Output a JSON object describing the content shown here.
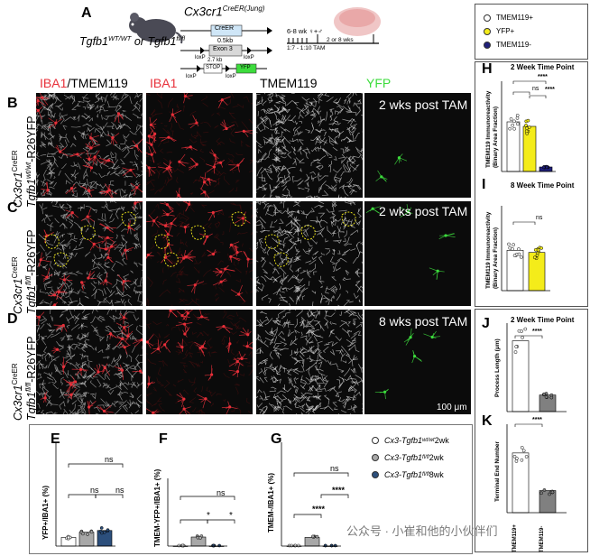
{
  "panels": {
    "A": {
      "letter": "A",
      "gene": "Cx3cr1",
      "gene_sup": "CreER(Jung)",
      "tgfb_wt": "Tgfb1",
      "tgfb_wt_sup": "WT/WT",
      "or": " or ",
      "tgfb_fl": "Tgfb1",
      "tgfb_fl_sup": "fl/fl",
      "creer": "CreER",
      "size_05": "0.5kb",
      "exon3": "Exon 3",
      "loxp1": "loxP",
      "loxp2": "loxP",
      "loxp3": "loxP",
      "loxp4": "loxP",
      "stop_size": "2.7 kb",
      "stop": "STOP",
      "yfp": "YFP",
      "age": "6-8 wk",
      "sex": "♀+♂",
      "tam": "1:7 - 1:10 TAM",
      "weeks": "2 or 8 wks"
    },
    "channels": {
      "merge": "IBA1/TMEM119",
      "merge_a": "IBA1",
      "merge_b": "/TMEM119",
      "iba1": "IBA1",
      "tmem": "TMEM119",
      "yfp": "YFP"
    },
    "B": {
      "letter": "B",
      "time": "2 wks post TAM",
      "row_line1": "Cx3cr1",
      "row_line1_sup": "CreER",
      "row_line2": "Tgfb1",
      "row_line2_sup": "wt/wt",
      "row_line2_suffix": "-R26YFP"
    },
    "C": {
      "letter": "C",
      "time": "2 wks post TAM",
      "row_line1": "Cx3cr1",
      "row_line1_sup": "CreER",
      "row_line2": "Tgfb1",
      "row_line2_sup": "fl/fl",
      "row_line2_suffix": "-R26YFP"
    },
    "D": {
      "letter": "D",
      "time": "8 wks post TAM",
      "row_line1": "Cx3cr1",
      "row_line1_sup": "CreER",
      "row_line2": "Tgfb1",
      "row_line2_sup": "fl/fl",
      "row_line2_suffix": "-R26YFP",
      "scale": "100 μm"
    },
    "E": {
      "letter": "E",
      "ylabel": "YFP+/IBA1+ (%)",
      "sig_top": "ns",
      "sig_a": "ns",
      "sig_b": "ns"
    },
    "F": {
      "letter": "F",
      "ylabel": "TMEM-YFP+/IBA1+ (%)",
      "sig_top": "ns",
      "sig_a": "*",
      "sig_b": "*"
    },
    "G": {
      "letter": "G",
      "ylabel": "TMEM-/IBA1+ (%)",
      "sig_top": "ns",
      "sig_a": "****",
      "sig_b": "****"
    },
    "legend_bottom": [
      {
        "gene": "Cx3-Tgfb1",
        "sup": "wt/wt",
        "time": " 2wk",
        "color": "#ffffff"
      },
      {
        "gene": "Cx3-Tgfb1",
        "sup": "fl/fl",
        "time": " 2wk",
        "color": "#a8a8a8"
      },
      {
        "gene": "Cx3-Tgfb1",
        "sup": "fl/fl",
        "time": " 8wk",
        "color": "#2c4f7c"
      }
    ],
    "legend_right": [
      {
        "label": "TMEM119+",
        "color": "#ffffff"
      },
      {
        "label": "YFP+",
        "color": "#f4ec1a"
      },
      {
        "label": "TMEM119-",
        "color": "#1f1f7a"
      }
    ],
    "H": {
      "letter": "H",
      "title": "2 Week Time Point",
      "ylabel1": "TMEM119 Immunoreactivity",
      "ylabel2": "(Binary Area Fraction)",
      "sig_ns": "ns",
      "sig_a": "****",
      "sig_b": "****"
    },
    "I": {
      "letter": "I",
      "title": "8 Week Time Point",
      "ylabel1": "TMEM119 Immunoreactivity",
      "ylabel2": "(Binary Area Fraction)",
      "sig_ns": "ns"
    },
    "J": {
      "letter": "J",
      "title": "2 Week Time Point",
      "ylabel": "Process Length (μm)",
      "sig": "****"
    },
    "K": {
      "letter": "K",
      "ylabel": "Terminal End Number",
      "sig": "****",
      "x1": "TMEM119+",
      "x2": "TMEM119-"
    }
  },
  "watermark": "公众号 · 小崔和他的小伙伴们",
  "colors": {
    "iba1": "#e8303a",
    "yfp": "#3ddc3d",
    "yellow": "#f4ec1a",
    "navy": "#1f1f7a",
    "gray": "#a8a8a8"
  },
  "chart_data": [
    {
      "type": "bar",
      "panel": "E",
      "categories": [
        "wt/wt 2wk",
        "fl/fl 2wk",
        "fl/fl 8wk"
      ],
      "values": [
        5,
        8,
        9
      ]
    },
    {
      "type": "bar",
      "panel": "F",
      "categories": [
        "wt/wt 2wk",
        "fl/fl 2wk",
        "fl/fl 8wk"
      ],
      "values": [
        0,
        4,
        0
      ]
    },
    {
      "type": "bar",
      "panel": "G",
      "categories": [
        "wt/wt 2wk",
        "fl/fl 2wk",
        "fl/fl 8wk"
      ],
      "values": [
        0,
        5,
        0
      ]
    },
    {
      "type": "bar",
      "panel": "H",
      "categories": [
        "TMEM119+",
        "YFP+",
        "TMEM119-"
      ],
      "values": [
        0.22,
        0.2,
        0.02
      ],
      "ylim": [
        0,
        0.4
      ]
    },
    {
      "type": "bar",
      "panel": "I",
      "categories": [
        "TMEM119+",
        "YFP+"
      ],
      "values": [
        0.19,
        0.18
      ],
      "ylim": [
        0,
        0.4
      ]
    },
    {
      "type": "bar",
      "panel": "J",
      "categories": [
        "TMEM119+",
        "TMEM119-"
      ],
      "values": [
        320,
        75
      ],
      "ylim": [
        0,
        400
      ]
    },
    {
      "type": "bar",
      "panel": "K",
      "categories": [
        "TMEM119+",
        "TMEM119-"
      ],
      "values": [
        27,
        10
      ],
      "ylim": [
        0,
        40
      ]
    }
  ]
}
